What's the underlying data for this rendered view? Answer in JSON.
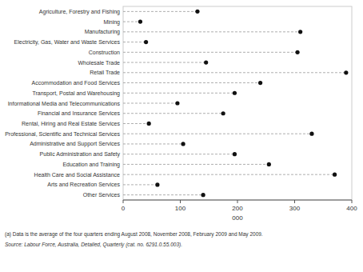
{
  "chart_data": {
    "type": "dot",
    "orientation": "horizontal",
    "categories": [
      "Agriculture, Forestry and Fishing",
      "Mining",
      "Manufacturing",
      "Electricity, Gas, Water and Waste Services",
      "Construction",
      "Wholesale Trade",
      "Retail Trade",
      "Accommodation and Food Services",
      "Transport, Postal and Warehousing",
      "Informational Media and Telecommunications",
      "Financial and Insurance Services",
      "Rental, Hiring and Real Estate Services",
      "Professional, Scientific and Technical Services",
      "Administrative and Support Services",
      "Public Administration and Safety",
      "Education and Training",
      "Health Care and Social Assistance",
      "Arts and Recreation Services",
      "Other Services"
    ],
    "values": [
      130,
      30,
      310,
      40,
      305,
      145,
      390,
      240,
      195,
      95,
      175,
      45,
      330,
      105,
      195,
      255,
      370,
      60,
      140
    ],
    "color": "#111111",
    "line_style": "dashed",
    "xlim": [
      0,
      400
    ],
    "xticks": [
      0,
      100,
      200,
      300,
      400
    ],
    "xlabel": "000",
    "grid": false,
    "annotations": [
      "(a) Data is the average of the four quarters ending August 2008, November 2008, February 2009 and May 2009.",
      "Source: Labour Force, Australia, Detailed, Quarterly (cat.  no.  6291.0.55.003)."
    ]
  }
}
